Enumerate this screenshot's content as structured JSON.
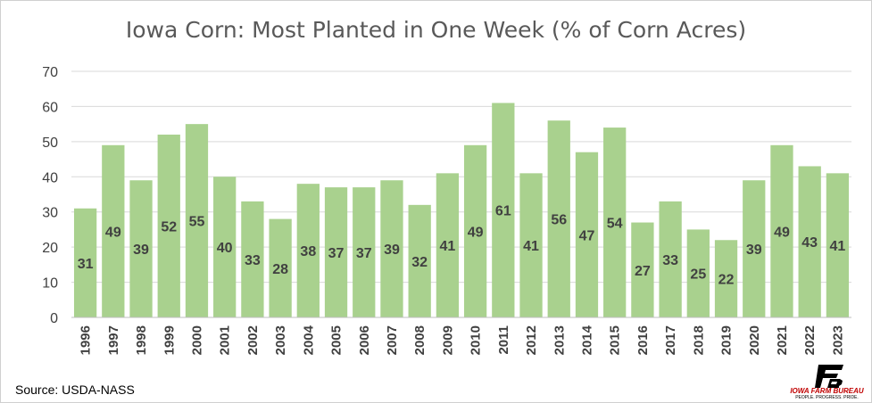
{
  "chart_data": {
    "type": "bar",
    "title": "Iowa Corn: Most Planted in One Week (% of Corn Acres)",
    "categories": [
      "1996",
      "1997",
      "1998",
      "1999",
      "2000",
      "2001",
      "2002",
      "2003",
      "2004",
      "2005",
      "2006",
      "2007",
      "2008",
      "2009",
      "2010",
      "2011",
      "2012",
      "2013",
      "2014",
      "2015",
      "2016",
      "2017",
      "2018",
      "2019",
      "2020",
      "2021",
      "2022",
      "2023"
    ],
    "values": [
      31,
      49,
      39,
      52,
      55,
      40,
      33,
      28,
      38,
      37,
      37,
      39,
      32,
      41,
      49,
      61,
      41,
      56,
      47,
      54,
      27,
      33,
      25,
      22,
      39,
      49,
      43,
      41
    ],
    "ylim": [
      0,
      70
    ],
    "yticks": [
      0,
      10,
      20,
      30,
      40,
      50,
      60,
      70
    ],
    "grid": true,
    "data_labels": true,
    "bar_color": "#a9d18e",
    "grid_color": "#d9d9d9",
    "label_color": "#404040"
  },
  "footer": {
    "source": "Source: USDA-NASS",
    "logo_name": "IOWA FARM BUREAU",
    "logo_tagline": "PEOPLE. PROGRESS. PRIDE."
  },
  "colors": {
    "logo_red": "#c00000"
  }
}
